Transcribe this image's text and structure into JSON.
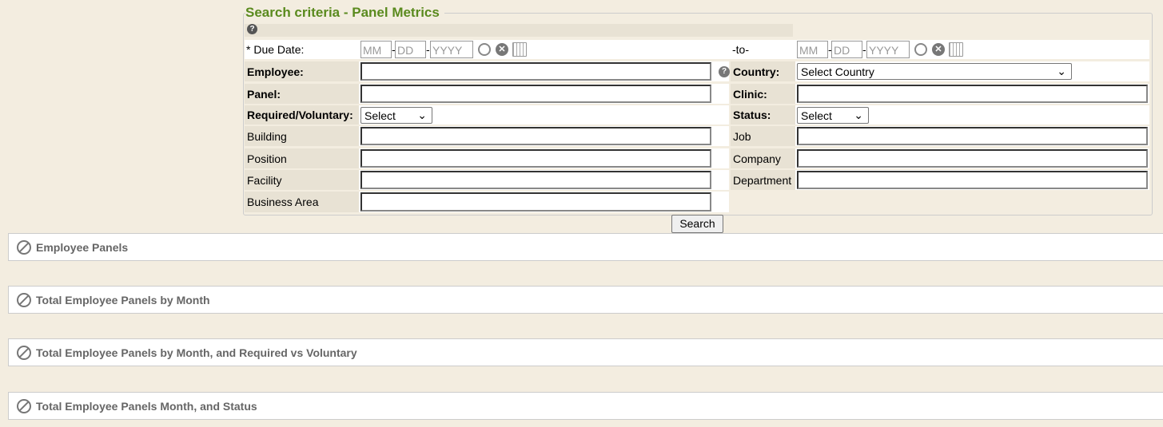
{
  "title": "Search criteria - Panel Metrics",
  "due_date": {
    "label": "* Due Date:",
    "to": "-to-",
    "mm": "MM",
    "dd": "DD",
    "yyyy": "YYYY",
    "sep": "-"
  },
  "left": [
    {
      "label": "Employee:",
      "type": "text",
      "bold": true
    },
    {
      "label": "Panel:",
      "type": "text",
      "bold": true
    },
    {
      "label": "Required/Voluntary:",
      "type": "select",
      "value": "Select",
      "bold": true
    },
    {
      "label": "Building",
      "type": "text"
    },
    {
      "label": "Position",
      "type": "text"
    },
    {
      "label": "Facility",
      "type": "text"
    },
    {
      "label": "Business Area",
      "type": "text"
    }
  ],
  "right": [
    {
      "label": "Country:",
      "type": "select",
      "value": "Select Country",
      "bold": true
    },
    {
      "label": "Clinic:",
      "type": "text",
      "bold": true
    },
    {
      "label": "Status:",
      "type": "select",
      "value": "Select",
      "bold": true
    },
    {
      "label": "Job",
      "type": "text"
    },
    {
      "label": "Company",
      "type": "text"
    },
    {
      "label": "Department",
      "type": "text"
    }
  ],
  "search_button": "Search",
  "sections": [
    "Employee Panels",
    "Total Employee Panels by Month",
    "Total Employee Panels by Month, and Required vs Voluntary",
    "Total Employee Panels Month, and Status"
  ],
  "colors": {
    "background": "#f3ede0",
    "title": "#5a8a1e",
    "label_bg": "#e8e2d4"
  },
  "icons": [
    "help-icon",
    "clock-icon",
    "clear-icon",
    "calendar-icon",
    "collapse-icon"
  ]
}
